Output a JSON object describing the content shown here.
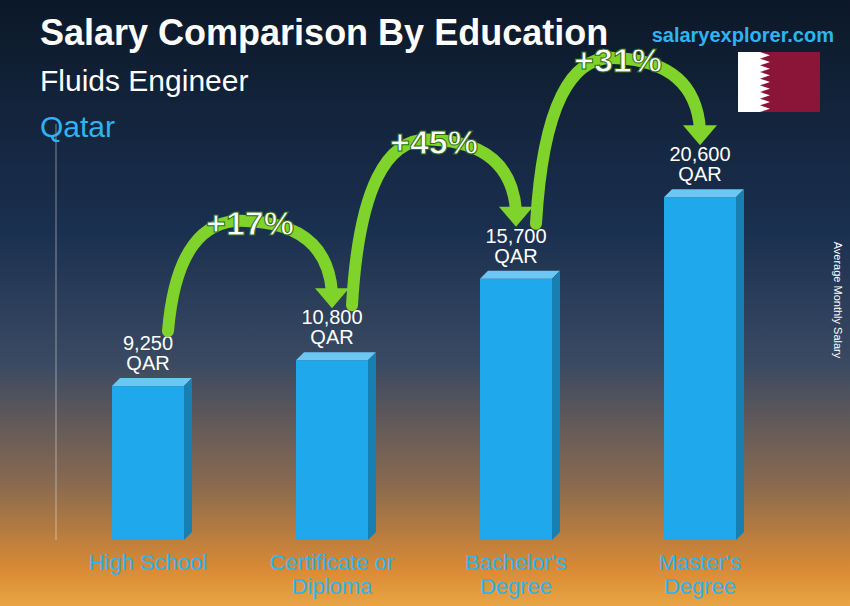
{
  "chart_data": {
    "type": "bar",
    "title": "Salary Comparison By Education",
    "subtitle": "Fluids Engineer",
    "location": "Qatar",
    "source": "salaryexplorer.com",
    "ylabel": "Average Monthly Salary",
    "categories": [
      "High School",
      "Certificate or Diploma",
      "Bachelor's Degree",
      "Master's Degree"
    ],
    "values": [
      9250,
      10800,
      15700,
      20600
    ],
    "value_labels": [
      "9,250 QAR",
      "10,800 QAR",
      "15,700 QAR",
      "20,600 QAR"
    ],
    "data_labels": true,
    "annotations": [
      "+17%",
      "+45%",
      "+31%"
    ],
    "color": "#1fa9ec",
    "ylim": [
      0,
      25000
    ],
    "grid": false,
    "tick_labels": "x"
  }
}
